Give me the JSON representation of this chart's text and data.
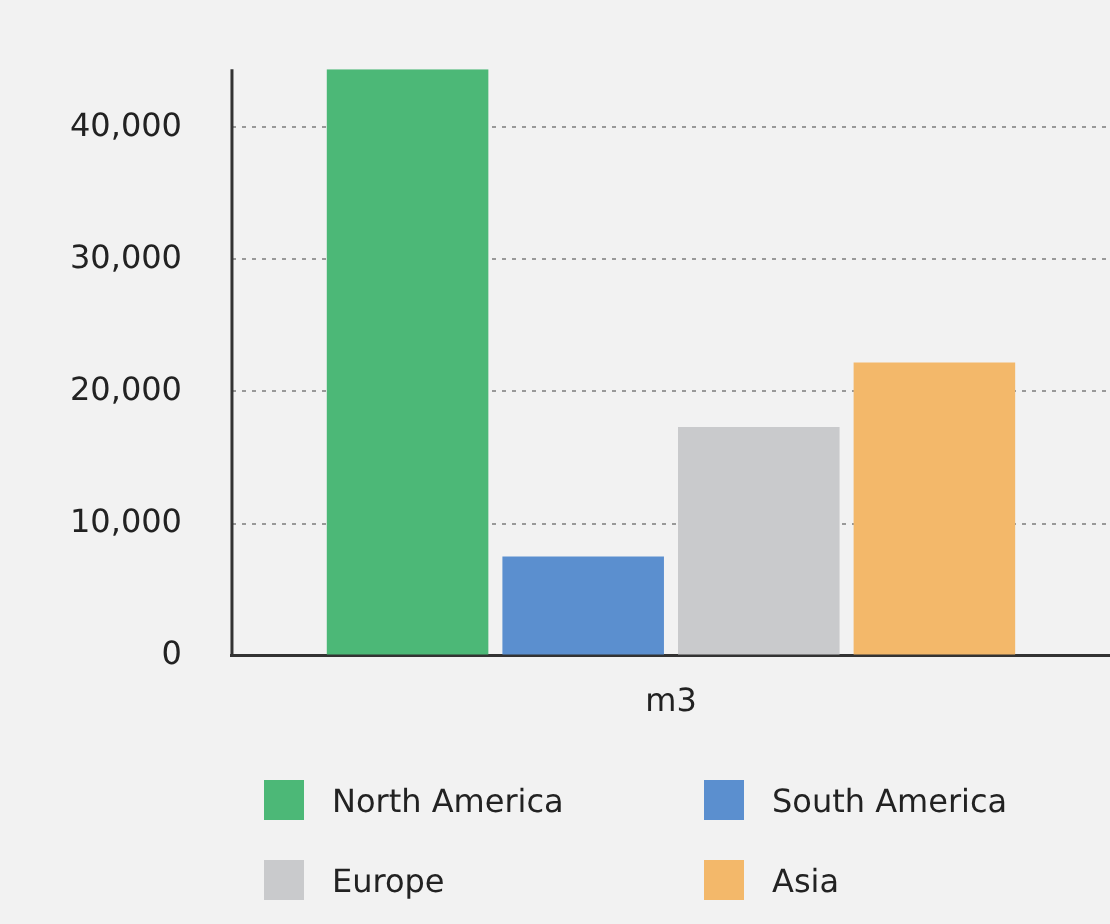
{
  "chart_data": {
    "type": "bar",
    "categories": [
      "m3"
    ],
    "series": [
      {
        "name": "North America",
        "color": "#4cb877",
        "values": [
          44400
        ]
      },
      {
        "name": "South America",
        "color": "#5b8fcf",
        "values": [
          7500
        ]
      },
      {
        "name": "Europe",
        "color": "#c9cacc",
        "values": [
          17300
        ]
      },
      {
        "name": "Asia",
        "color": "#f3b86a",
        "values": [
          22200
        ]
      }
    ],
    "ylim": [
      0,
      44400
    ],
    "yticks": [
      0,
      {
        "value": 10000,
        "label": "10,000"
      },
      {
        "value": 20000,
        "label": "20,000"
      },
      {
        "value": 30000,
        "label": "30,000"
      },
      {
        "value": 40000,
        "label": "40,000"
      }
    ],
    "grid": "y",
    "legend": "bottom"
  }
}
